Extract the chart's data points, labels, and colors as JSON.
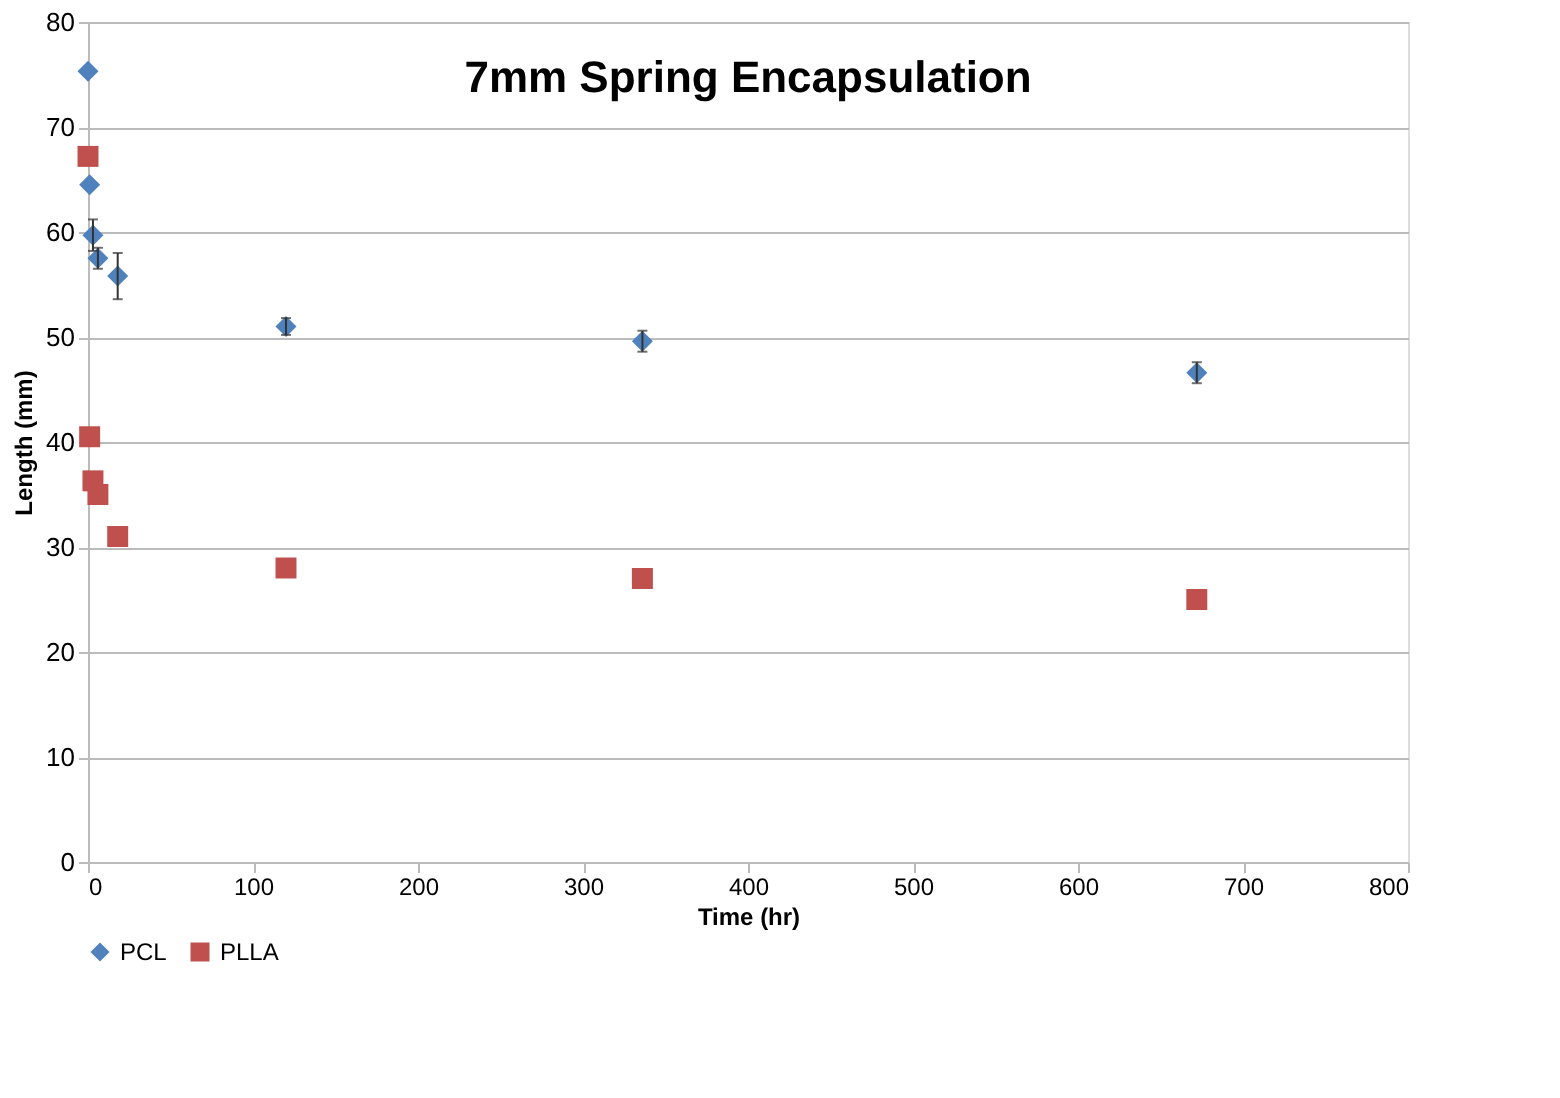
{
  "chart_data": {
    "type": "scatter",
    "title": "7mm Spring Encapsulation",
    "xlabel": "Time (hr)",
    "ylabel": "Length (mm)",
    "x": [
      0,
      1,
      3,
      6,
      18,
      120,
      336,
      672
    ],
    "series": [
      {
        "name": "PCL",
        "color": "#4f81bd",
        "marker": "diamond",
        "values": [
          75.3,
          64.5,
          59.7,
          57.5,
          55.8,
          51,
          49.6,
          46.6
        ],
        "errors": [
          null,
          null,
          1.5,
          1,
          2.2,
          0.8,
          1,
          1
        ]
      },
      {
        "name": "PLLA",
        "color": "#c0504d",
        "marker": "square",
        "values": [
          67.2,
          40.5,
          36.3,
          35,
          31,
          28,
          27,
          25
        ]
      }
    ],
    "xlim": [
      0,
      800
    ],
    "xticks": [
      0,
      100,
      200,
      300,
      400,
      500,
      600,
      700,
      800
    ],
    "ylim": [
      0,
      80
    ],
    "yticks": [
      0,
      10,
      20,
      30,
      40,
      50,
      60,
      70,
      80
    ],
    "grid": "y",
    "legend": "bottom left"
  }
}
